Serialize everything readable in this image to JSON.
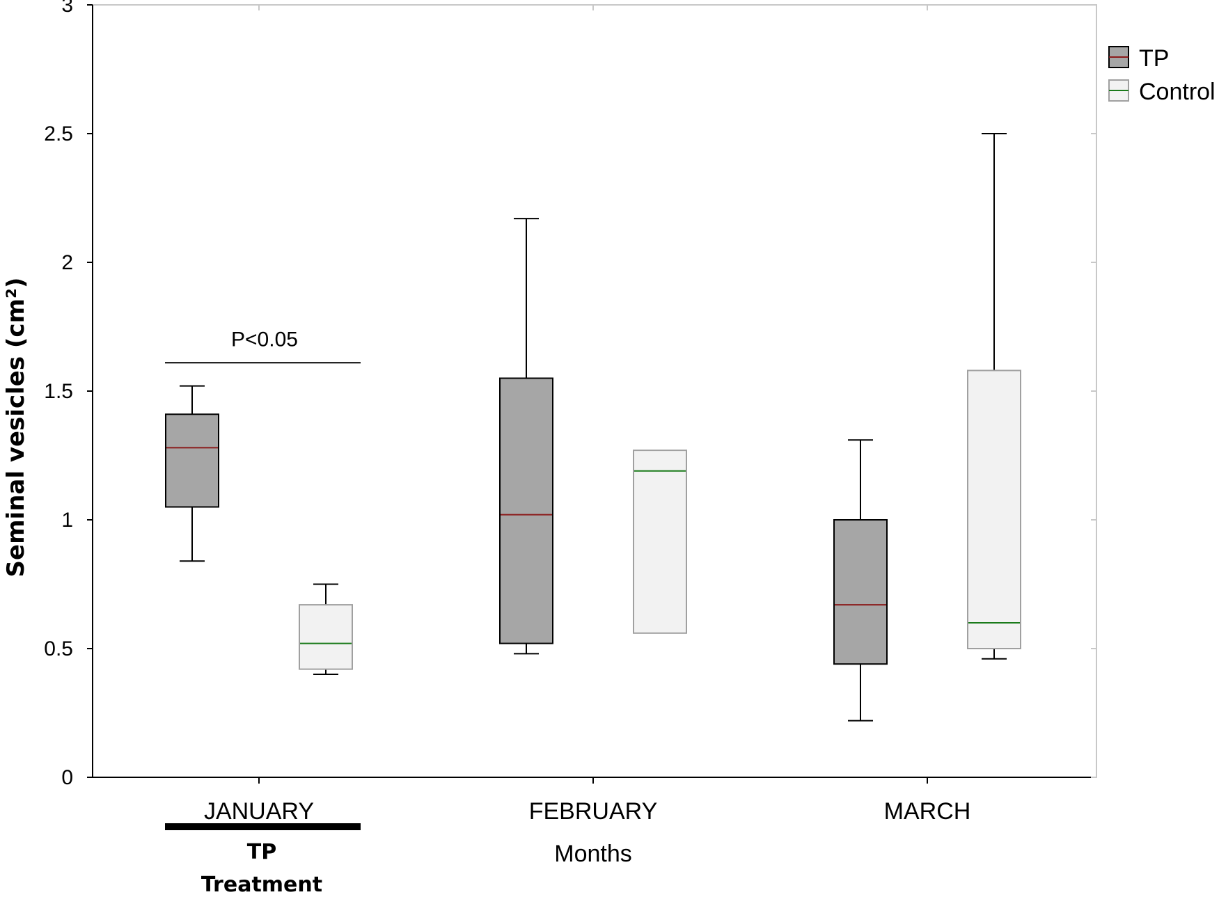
{
  "chart_data": {
    "type": "box",
    "ylabel": "Seminal vesicles (cm²)",
    "xlabel": "Months",
    "ylim": [
      0,
      3
    ],
    "yticks": [
      0,
      0.5,
      1,
      1.5,
      2,
      2.5,
      3
    ],
    "ytick_labels": [
      "0",
      "0.5",
      "1",
      "1.5",
      "2",
      "2.5",
      "3"
    ],
    "categories": [
      "JANUARY",
      "FEBRUARY",
      "MARCH"
    ],
    "grid": false,
    "legend_position": "top-right",
    "series": [
      {
        "name": "TP",
        "fill": "#a6a6a6",
        "border": "#000000",
        "median_color": "#8b1a1a",
        "boxes": [
          {
            "category": "JANUARY",
            "whisker_low": 0.84,
            "q1": 1.05,
            "median": 1.28,
            "q3": 1.41,
            "whisker_high": 1.52
          },
          {
            "category": "FEBRUARY",
            "whisker_low": 0.48,
            "q1": 0.52,
            "median": 1.02,
            "q3": 1.55,
            "whisker_high": 2.17
          },
          {
            "category": "MARCH",
            "whisker_low": 0.22,
            "q1": 0.44,
            "median": 0.67,
            "q3": 1.0,
            "whisker_high": 1.31
          }
        ]
      },
      {
        "name": "Control",
        "fill": "#f2f2f2",
        "border": "#a0a0a0",
        "median_color": "#1a7a1a",
        "boxes": [
          {
            "category": "JANUARY",
            "whisker_low": 0.4,
            "q1": 0.42,
            "median": 0.52,
            "q3": 0.67,
            "whisker_high": 0.75
          },
          {
            "category": "FEBRUARY",
            "whisker_low": 0.56,
            "q1": 0.56,
            "median": 1.19,
            "q3": 1.27,
            "whisker_high": 1.27
          },
          {
            "category": "MARCH",
            "whisker_low": 0.46,
            "q1": 0.5,
            "median": 0.6,
            "q3": 1.58,
            "whisker_high": 2.5
          }
        ]
      }
    ],
    "annotations": [
      {
        "text": "P<0.05",
        "category": "JANUARY",
        "y": 1.61
      }
    ],
    "treatment_bar": {
      "category": "JANUARY",
      "lines": [
        "TP",
        "Treatment"
      ]
    }
  }
}
